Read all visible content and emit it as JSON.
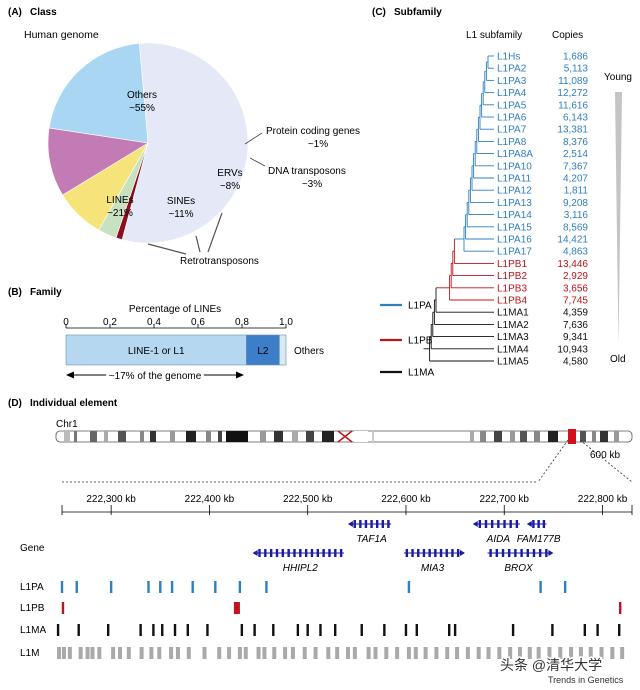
{
  "panels": {
    "a": {
      "label": "(A)",
      "title": "Class"
    },
    "b": {
      "label": "(B)",
      "title": "Family"
    },
    "c": {
      "label": "(C)",
      "title": "Subfamily"
    },
    "d": {
      "label": "(D)",
      "title": "Individual element"
    }
  },
  "pie": {
    "heading": "Human genome",
    "slices": [
      {
        "name": "Others",
        "pct": "~55%",
        "value": 55,
        "color": "#e5e8f6"
      },
      {
        "name": "Protein coding genes",
        "pct": "~1%",
        "value": 1,
        "color": "#8a1020"
      },
      {
        "name": "DNA transposons",
        "pct": "~3%",
        "value": 3,
        "color": "#c8e2c0"
      },
      {
        "name": "ERVs",
        "pct": "~8%",
        "value": 8,
        "color": "#f6e37a"
      },
      {
        "name": "SINEs",
        "pct": "~11%",
        "value": 11,
        "color": "#c27bb5"
      },
      {
        "name": "LINEs",
        "pct": "~21%",
        "value": 21,
        "color": "#a9d6f3"
      }
    ],
    "retro_label": "Retrotransposons"
  },
  "family": {
    "axis_title": "Percentage of LINEs",
    "ticks": [
      "0",
      "0.2",
      "0.4",
      "0.6",
      "0.8",
      "1.0"
    ],
    "segments": [
      {
        "name": "LINE-1 or L1",
        "from": 0.0,
        "to": 0.82,
        "color": "#b5d7ef"
      },
      {
        "name": "L2",
        "from": 0.82,
        "to": 0.97,
        "color": "#3c7fc8"
      },
      {
        "name": "Others",
        "from": 0.97,
        "to": 1.0,
        "color": "#d8eaf7"
      }
    ],
    "genome_note": "~17% of the genome"
  },
  "subfamily": {
    "col_name": "L1 subfamily",
    "col_copies": "Copies",
    "rows": [
      {
        "name": "L1Hs",
        "copies": "1,686",
        "group": "L1PA"
      },
      {
        "name": "L1PA2",
        "copies": "5,113",
        "group": "L1PA"
      },
      {
        "name": "L1PA3",
        "copies": "11,089",
        "group": "L1PA"
      },
      {
        "name": "L1PA4",
        "copies": "12,272",
        "group": "L1PA"
      },
      {
        "name": "L1PA5",
        "copies": "11,616",
        "group": "L1PA"
      },
      {
        "name": "L1PA6",
        "copies": "6,143",
        "group": "L1PA"
      },
      {
        "name": "L1PA7",
        "copies": "13,381",
        "group": "L1PA"
      },
      {
        "name": "L1PA8",
        "copies": "8,376",
        "group": "L1PA"
      },
      {
        "name": "L1PA8A",
        "copies": "2,514",
        "group": "L1PA"
      },
      {
        "name": "L1PA10",
        "copies": "7,367",
        "group": "L1PA"
      },
      {
        "name": "L1PA11",
        "copies": "4,207",
        "group": "L1PA"
      },
      {
        "name": "L1PA12",
        "copies": "1,811",
        "group": "L1PA"
      },
      {
        "name": "L1PA13",
        "copies": "9,208",
        "group": "L1PA"
      },
      {
        "name": "L1PA14",
        "copies": "3,116",
        "group": "L1PA"
      },
      {
        "name": "L1PA15",
        "copies": "8,569",
        "group": "L1PA"
      },
      {
        "name": "L1PA16",
        "copies": "14,421",
        "group": "L1PA"
      },
      {
        "name": "L1PA17",
        "copies": "4,863",
        "group": "L1PA"
      },
      {
        "name": "L1PB1",
        "copies": "13,446",
        "group": "L1PB"
      },
      {
        "name": "L1PB2",
        "copies": "2,929",
        "group": "L1PB"
      },
      {
        "name": "L1PB3",
        "copies": "3,656",
        "group": "L1PB"
      },
      {
        "name": "L1PB4",
        "copies": "7,745",
        "group": "L1PB"
      },
      {
        "name": "L1MA1",
        "copies": "4,359",
        "group": "L1MA"
      },
      {
        "name": "L1MA2",
        "copies": "7,636",
        "group": "L1MA"
      },
      {
        "name": "L1MA3",
        "copies": "9,341",
        "group": "L1MA"
      },
      {
        "name": "L1MA4",
        "copies": "10,943",
        "group": "L1MA"
      },
      {
        "name": "L1MA5",
        "copies": "4,580",
        "group": "L1MA"
      }
    ],
    "legend": [
      {
        "name": "L1PA",
        "color": "#2f7fc1"
      },
      {
        "name": "L1PB",
        "color": "#c0141c"
      },
      {
        "name": "L1MA",
        "color": "#111111"
      }
    ],
    "young_label": "Young",
    "old_label": "Old"
  },
  "individual": {
    "chromosome": "Chr1",
    "zoom_label": "600 kb",
    "kb_ticks": [
      "222,300 kb",
      "222,400 kb",
      "222,500 kb",
      "222,600 kb",
      "222,700 kb",
      "222,800 kb"
    ],
    "gene_track_label": "Gene",
    "genes": [
      {
        "name": "TAF1A",
        "start_kb": 222545,
        "end_kb": 222585,
        "strand": "-",
        "row": 1
      },
      {
        "name": "AIDA",
        "start_kb": 222672,
        "end_kb": 222716,
        "strand": "-",
        "row": 1
      },
      {
        "name": "FAM177B",
        "start_kb": 222727,
        "end_kb": 222743,
        "strand": "-",
        "row": 1
      },
      {
        "name": "HHIPL2",
        "start_kb": 222448,
        "end_kb": 222537,
        "strand": "-",
        "row": 2
      },
      {
        "name": "MIA3",
        "start_kb": 222598,
        "end_kb": 222656,
        "strand": "+",
        "row": 2
      },
      {
        "name": "BROX",
        "start_kb": 222683,
        "end_kb": 222746,
        "strand": "+",
        "row": 2
      }
    ],
    "tracks": [
      {
        "name": "L1PA",
        "color": "#2f7fc1",
        "positions_kb": [
          222250,
          222265,
          222300,
          222338,
          222350,
          222362,
          222383,
          222406,
          222431,
          222458,
          222603,
          222737,
          222762
        ]
      },
      {
        "name": "L1PB",
        "color": "#c0141c",
        "positions_kb": [
          222251,
          222428,
          222818
        ]
      },
      {
        "name": "L1MA",
        "color": "#111111",
        "positions_kb": [
          222246,
          222267,
          222297,
          222330,
          222343,
          222352,
          222365,
          222378,
          222398,
          222433,
          222446,
          222465,
          222490,
          222500,
          222513,
          222528,
          222555,
          222578,
          222600,
          222611,
          222644,
          222650,
          222709,
          222749,
          222782,
          222795,
          222817
        ]
      },
      {
        "name": "L1M",
        "color": "#a9a9a9",
        "positions_kb": [
          222247,
          222252,
          222258,
          222269,
          222276,
          222281,
          222288,
          222302,
          222309,
          222318,
          222331,
          222341,
          222349,
          222361,
          222368,
          222379,
          222395,
          222410,
          222420,
          222431,
          222437,
          222450,
          222456,
          222466,
          222477,
          222485,
          222497,
          222508,
          222521,
          222530,
          222541,
          222548,
          222562,
          222569,
          222580,
          222591,
          222603,
          222610,
          222620,
          222631,
          222642,
          222652,
          222663,
          222674,
          222684,
          222695,
          222706,
          222716,
          222726,
          222735,
          222746,
          222757,
          222768,
          222778,
          222788,
          222799,
          222810,
          222820
        ]
      }
    ]
  },
  "footer": {
    "watermark": "头条 @清华大学",
    "journal": "Trends in Genetics"
  }
}
